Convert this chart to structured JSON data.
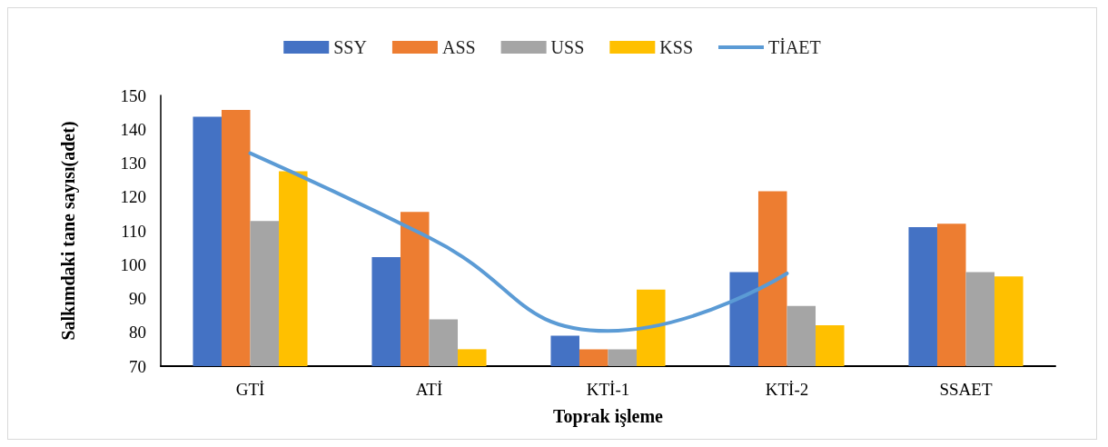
{
  "chart_data": {
    "type": "bar",
    "xlabel": "Toprak işleme",
    "ylabel": "Salkımdaki tane sayısı(adet)",
    "categories": [
      "GTİ",
      "ATİ",
      "KTİ-1",
      "KTİ-2",
      "SSAET"
    ],
    "series": [
      {
        "name": "SSY",
        "color": "#4472c4",
        "values": [
          143.7,
          102.2,
          79,
          97.8,
          111.1
        ]
      },
      {
        "name": "ASS",
        "color": "#ed7d31",
        "values": [
          145.7,
          115.6,
          75,
          121.7,
          112.1
        ]
      },
      {
        "name": "USS",
        "color": "#a5a5a5",
        "values": [
          112.9,
          83.8,
          75,
          87.8,
          97.8
        ]
      },
      {
        "name": "KSS",
        "color": "#ffc000",
        "values": [
          127.6,
          75,
          92.6,
          82.1,
          96.5
        ]
      },
      {
        "name": "TİAET",
        "type": "line",
        "color": "#5b9bd5",
        "values": [
          132.9,
          108,
          80.4,
          97.4,
          null
        ]
      }
    ],
    "ylim": [
      70,
      150
    ],
    "yticks": [
      70,
      80,
      90,
      100,
      110,
      120,
      130,
      140,
      150
    ],
    "grid": false,
    "legend": "top",
    "marker": "none"
  }
}
